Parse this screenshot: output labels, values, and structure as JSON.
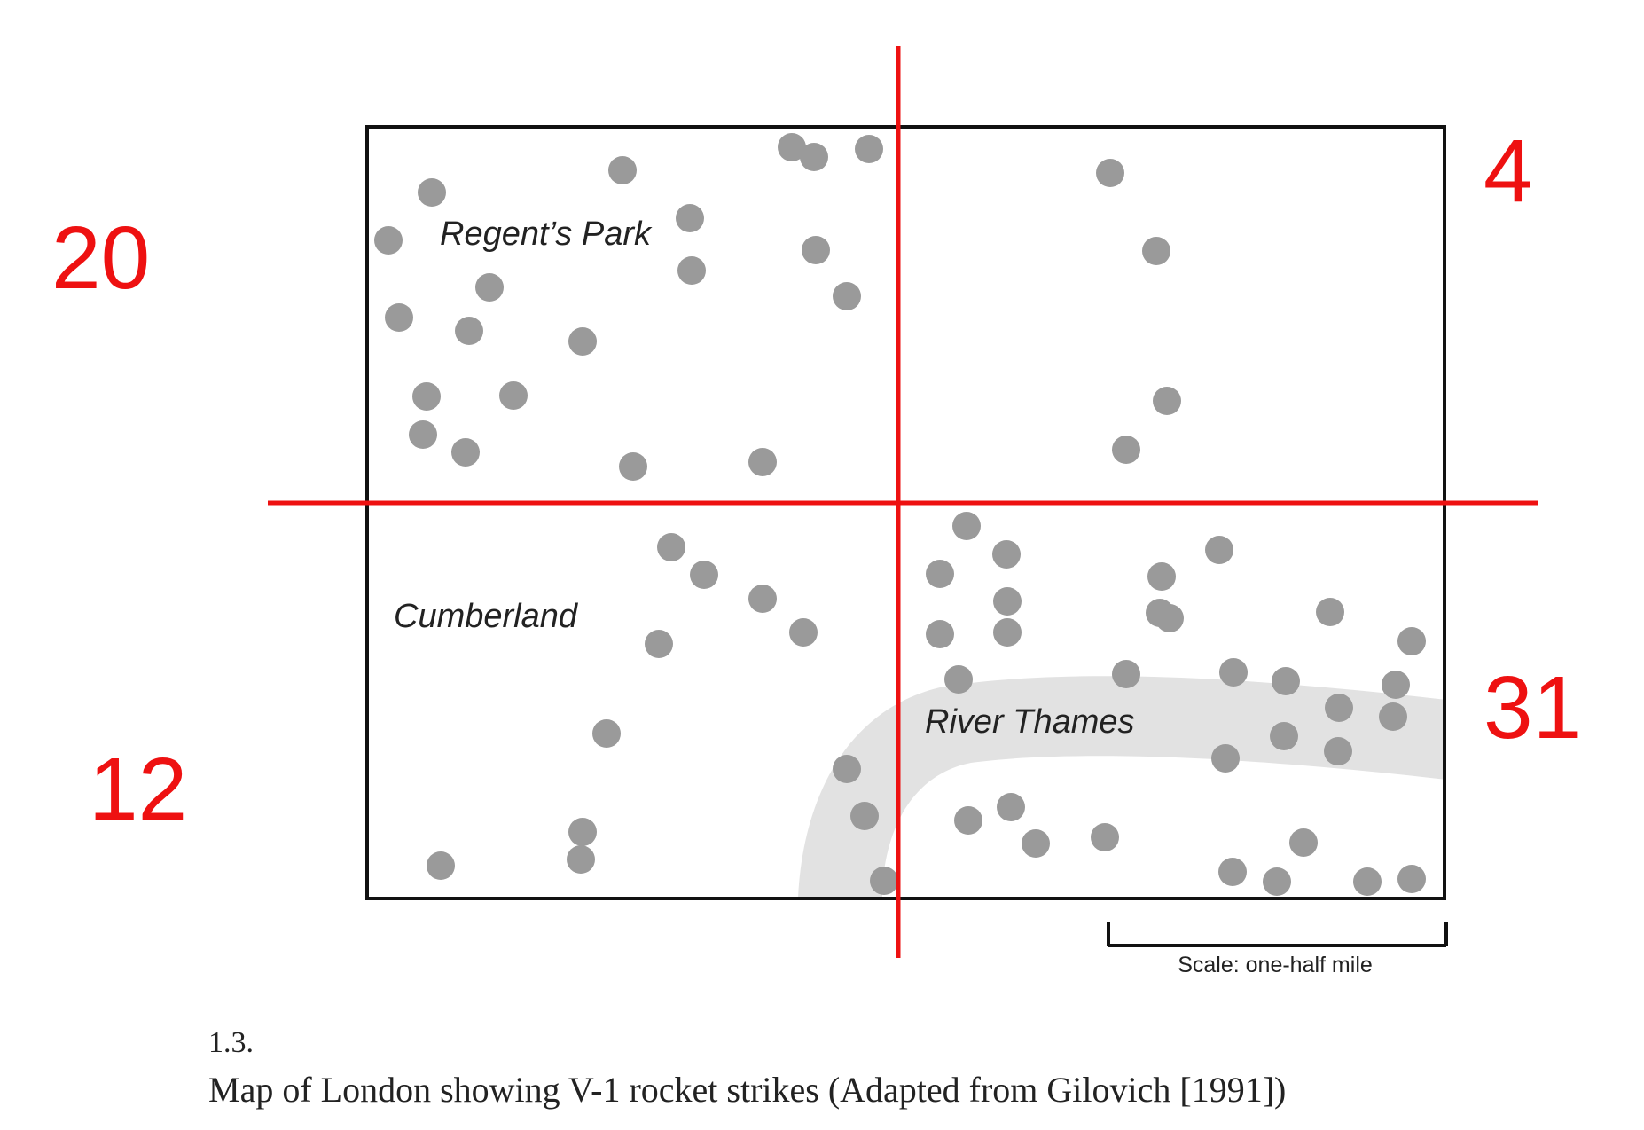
{
  "map": {
    "labels": {
      "regents_park": "Regent’s Park",
      "cumberland": "Cumberland",
      "river_thames": "River Thames"
    },
    "quadrant_counts": {
      "top_left": "20",
      "top_right": "4",
      "bottom_left": "12",
      "bottom_right": "31"
    },
    "scale_label": "Scale: one-half mile",
    "colors": {
      "strike": "#9a9a9a",
      "river": "#e2e2e2",
      "divider": "#ee1111",
      "frame": "#111111"
    }
  },
  "caption": {
    "figure_number": "1.3.",
    "text": "Map of London showing V-1 rocket strikes (Adapted from Gilovich [1991])"
  }
}
